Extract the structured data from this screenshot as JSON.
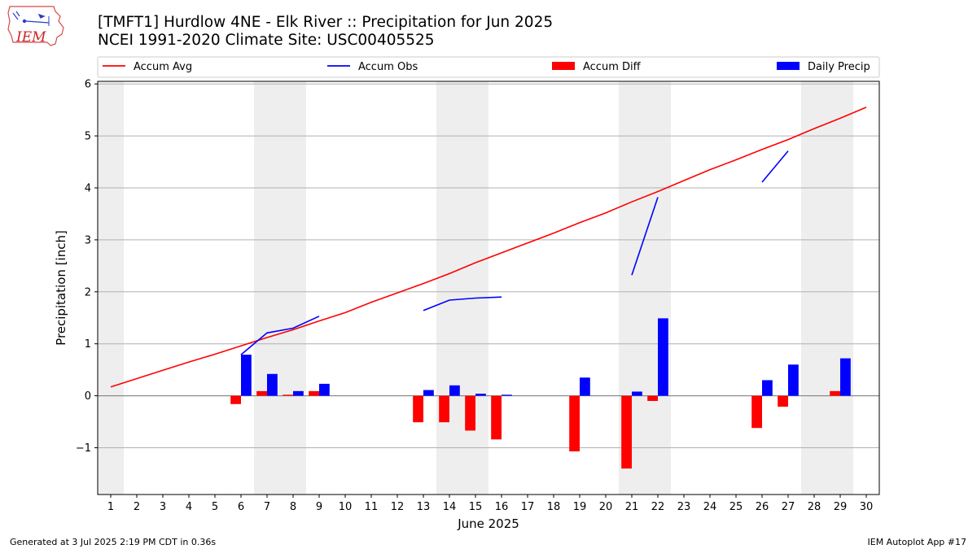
{
  "logo": {
    "text": "IEM",
    "color": "#cc2222"
  },
  "title": {
    "line1": "[TMFT1] Hurdlow 4NE - Elk River :: Precipitation for Jun 2025",
    "line2": "NCEI 1991-2020 Climate Site: USC00405525"
  },
  "footer": {
    "generated": "Generated at 3 Jul 2025 2:19 PM CDT in 0.36s",
    "app": "IEM Autoplot App #17"
  },
  "chart_data": {
    "type": "bar",
    "xlabel": "June 2025",
    "ylabel": "Precipitation [inch]",
    "xlim": [
      0.5,
      30.5
    ],
    "ylim": [
      -1.9,
      6.05
    ],
    "yticks": [
      -1,
      0,
      1,
      2,
      3,
      4,
      5,
      6
    ],
    "ytick_labels": [
      "−1",
      "0",
      "1",
      "2",
      "3",
      "4",
      "5",
      "6"
    ],
    "x": [
      1,
      2,
      3,
      4,
      5,
      6,
      7,
      8,
      9,
      10,
      11,
      12,
      13,
      14,
      15,
      16,
      17,
      18,
      19,
      20,
      21,
      22,
      23,
      24,
      25,
      26,
      27,
      28,
      29,
      30
    ],
    "grid": "horizontal",
    "legend_placement": "top",
    "weekend_shading": [
      [
        0.5,
        1.5
      ],
      [
        6.5,
        8.5
      ],
      [
        13.5,
        15.5
      ],
      [
        20.5,
        22.5
      ],
      [
        27.5,
        29.5
      ]
    ],
    "series": [
      {
        "name": "Accum Avg",
        "kind": "line",
        "color": "#ff0000",
        "x": [
          1,
          2,
          3,
          4,
          5,
          6,
          7,
          8,
          9,
          10,
          11,
          12,
          13,
          14,
          15,
          16,
          17,
          18,
          19,
          20,
          21,
          22,
          23,
          24,
          25,
          26,
          27,
          28,
          29,
          30
        ],
        "values": [
          0.17,
          0.33,
          0.49,
          0.65,
          0.8,
          0.96,
          1.12,
          1.27,
          1.44,
          1.6,
          1.8,
          1.98,
          2.16,
          2.35,
          2.56,
          2.75,
          2.94,
          3.13,
          3.33,
          3.52,
          3.73,
          3.93,
          4.14,
          4.35,
          4.54,
          4.74,
          4.93,
          5.14,
          5.34,
          5.55
        ]
      },
      {
        "name": "Accum Obs",
        "kind": "line",
        "color": "#0000ff",
        "segments": [
          {
            "x": [
              6,
              7,
              8,
              9
            ],
            "values": [
              0.79,
              1.21,
              1.3,
              1.53
            ]
          },
          {
            "x": [
              13,
              14,
              15,
              16
            ],
            "values": [
              1.64,
              1.84,
              1.88,
              1.9
            ]
          },
          {
            "x": [
              21,
              22
            ],
            "values": [
              2.32,
              3.82
            ]
          },
          {
            "x": [
              26,
              27
            ],
            "values": [
              4.11,
              4.71
            ]
          }
        ]
      },
      {
        "name": "Accum Diff",
        "kind": "bar",
        "color": "#ff0000",
        "x": [
          6,
          7,
          8,
          9,
          13,
          14,
          15,
          16,
          19,
          21,
          22,
          26,
          27,
          29
        ],
        "values": [
          -0.16,
          0.09,
          0.02,
          0.09,
          -0.51,
          -0.51,
          -0.67,
          -0.84,
          -1.07,
          -1.4,
          -0.1,
          -0.62,
          -0.21,
          0.09
        ]
      },
      {
        "name": "Daily Precip",
        "kind": "bar",
        "color": "#0000ff",
        "x": [
          6,
          7,
          8,
          9,
          13,
          14,
          15,
          16,
          19,
          21,
          22,
          26,
          27,
          29
        ],
        "values": [
          0.79,
          0.42,
          0.09,
          0.23,
          0.11,
          0.2,
          0.04,
          0.02,
          0.35,
          0.08,
          1.49,
          0.3,
          0.6,
          0.72
        ]
      }
    ]
  }
}
